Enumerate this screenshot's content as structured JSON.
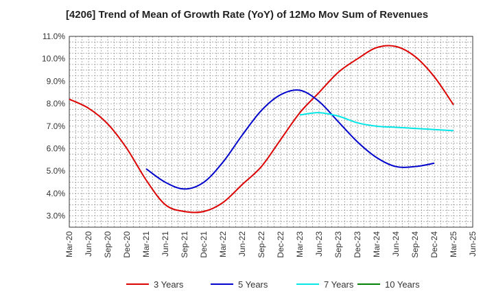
{
  "chart_data": {
    "type": "line",
    "title": "[4206]  Trend of Mean of Growth Rate (YoY) of 12Mo Mov Sum of Revenues",
    "xlabel": "",
    "ylabel": "",
    "ylim": [
      2.5,
      11.0
    ],
    "y_ticks": [
      3.0,
      4.0,
      5.0,
      6.0,
      7.0,
      8.0,
      9.0,
      10.0,
      11.0
    ],
    "y_tick_labels": [
      "3.0%",
      "4.0%",
      "5.0%",
      "6.0%",
      "7.0%",
      "8.0%",
      "9.0%",
      "10.0%",
      "11.0%"
    ],
    "x_tick_labels": [
      "Mar-20",
      "Jun-20",
      "Sep-20",
      "Dec-20",
      "Mar-21",
      "Jun-21",
      "Sep-21",
      "Dec-21",
      "Mar-22",
      "Jun-22",
      "Sep-22",
      "Dec-22",
      "Mar-23",
      "Jun-23",
      "Sep-23",
      "Dec-23",
      "Mar-24",
      "Jun-24",
      "Sep-24",
      "Dec-24",
      "Mar-25",
      "Jun-25"
    ],
    "grid": true,
    "legend_position": "bottom",
    "series": [
      {
        "name": "3 Years",
        "color": "#dd0000",
        "start_index": 0,
        "values": [
          8.2,
          7.8,
          7.1,
          6.0,
          4.6,
          3.5,
          3.2,
          3.2,
          3.6,
          4.4,
          5.2,
          6.4,
          7.6,
          8.5,
          9.4,
          10.0,
          10.5,
          10.55,
          10.1,
          9.2,
          7.95
        ]
      },
      {
        "name": "5 Years",
        "color": "#0000cc",
        "start_index": 4,
        "values": [
          5.1,
          4.5,
          4.2,
          4.5,
          5.4,
          6.6,
          7.7,
          8.4,
          8.6,
          8.1,
          7.2,
          6.3,
          5.6,
          5.2,
          5.2,
          5.35
        ]
      },
      {
        "name": "7 Years",
        "color": "#00e5e5",
        "start_index": 12,
        "values": [
          7.5,
          7.6,
          7.45,
          7.15,
          7.0,
          6.95,
          6.9,
          6.85,
          6.8
        ]
      },
      {
        "name": "10 Years",
        "color": "#008000",
        "start_index": 0,
        "values": []
      }
    ]
  }
}
